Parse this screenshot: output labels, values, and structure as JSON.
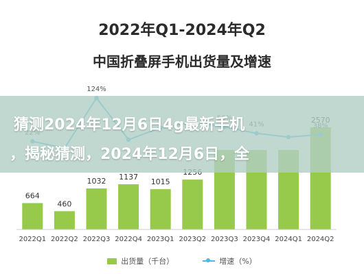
{
  "colors": {
    "bar": "#97c94b",
    "bar_top": "#8bbd3e",
    "line": "#4fb7e3",
    "title": "#2b2b2b"
  },
  "overlay": {
    "line1": "猜测2024年12月6日4g最新手机",
    "line2": "，揭秘猜测，2024年12月6日，全"
  },
  "chart_data": {
    "type": "bar",
    "title": "2022年Q1-2024年Q2",
    "subtitle": "中国折叠屏手机出货量及增速",
    "categories": [
      "2022Q1",
      "2022Q2",
      "2022Q3",
      "2022Q4",
      "2023Q1",
      "2023Q2",
      "2023Q3",
      "2023Q4",
      "2024Q1",
      "2024Q2"
    ],
    "series": [
      {
        "name": "出货量（千台）",
        "type": "bar",
        "values": [
          664,
          460,
          1032,
          1137,
          1015,
          1256,
          2000,
          2000,
          2000,
          2570
        ],
        "labels": [
          "664",
          "460",
          "1032",
          "1137",
          "1015",
          "1256",
          "",
          "",
          "",
          "2570"
        ]
      },
      {
        "name": "增速（%）",
        "type": "line",
        "values": [
          22,
          6,
          124,
          26,
          54,
          66,
          56,
          41,
          32,
          38
        ],
        "labels": [
          "22%",
          "",
          "124%",
          "",
          "",
          "",
          "56%",
          "41%",
          "",
          "38%"
        ]
      }
    ],
    "legend": "bottom",
    "grid": false
  }
}
